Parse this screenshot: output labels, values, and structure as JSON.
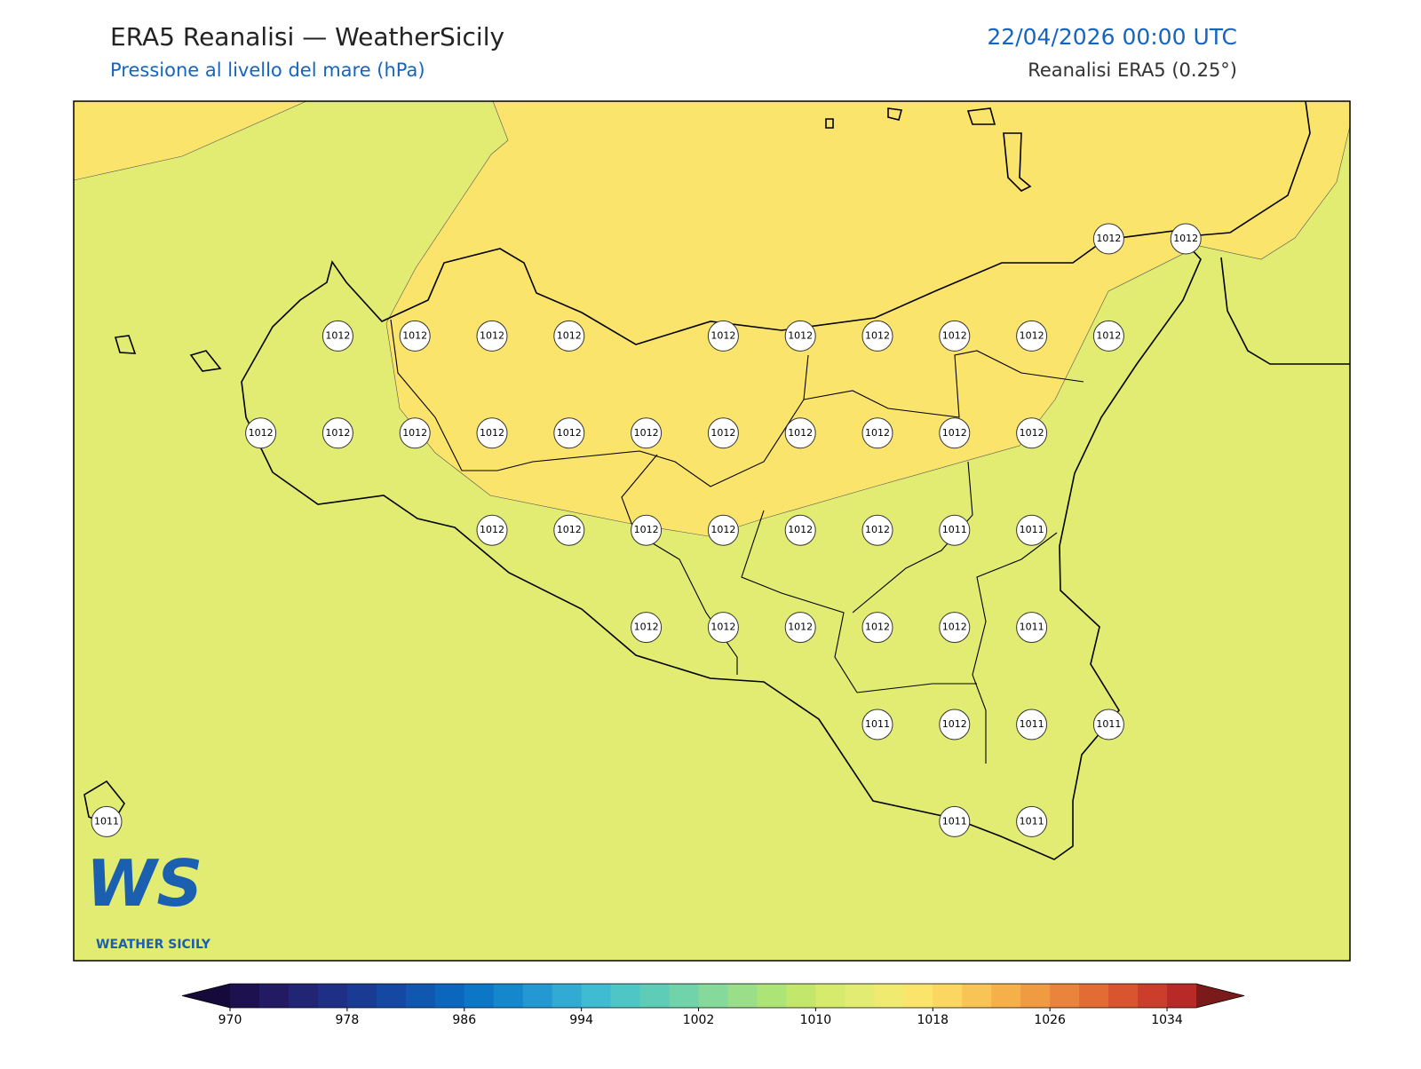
{
  "header": {
    "title": "ERA5 Reanalisi — WeatherSicily",
    "subtitle": "Pressione al livello del mare (hPa)",
    "datetime": "22/04/2026 00:00 UTC",
    "source": "Reanalisi ERA5 (0.25°)"
  },
  "pressure_grid": {
    "rows": [
      [
        null,
        null,
        null,
        null,
        null,
        null,
        null,
        null,
        null,
        null,
        null,
        null,
        null,
        1012,
        1012
      ],
      [
        null,
        null,
        null,
        1012,
        1012,
        1012,
        1012,
        null,
        1012,
        1012,
        1012,
        1012,
        1012,
        1012,
        null
      ],
      [
        null,
        null,
        1012,
        1012,
        1012,
        1012,
        1012,
        1012,
        1012,
        1012,
        1012,
        1012,
        1012,
        null,
        null
      ],
      [
        null,
        null,
        null,
        null,
        null,
        1012,
        1012,
        1012,
        1012,
        1012,
        1012,
        1011,
        1011,
        null,
        null
      ],
      [
        null,
        null,
        null,
        null,
        null,
        null,
        null,
        1012,
        1012,
        1012,
        1012,
        1012,
        1011,
        null,
        null
      ],
      [
        null,
        null,
        null,
        null,
        null,
        null,
        null,
        null,
        null,
        null,
        1011,
        1012,
        1011,
        1011,
        null
      ],
      [
        1011,
        null,
        null,
        null,
        null,
        null,
        null,
        null,
        null,
        null,
        null,
        1011,
        1011,
        null,
        null
      ]
    ]
  },
  "colorbar": {
    "lim": [
      970,
      1036
    ],
    "ticks": [
      970,
      978,
      986,
      994,
      1002,
      1010,
      1018,
      1026,
      1034
    ],
    "colors": [
      "#1e1150",
      "#221a63",
      "#222474",
      "#1f2f85",
      "#1a3b93",
      "#1548a2",
      "#1057b0",
      "#0b67bd",
      "#0c77c6",
      "#1587cd",
      "#2398d2",
      "#31abd4",
      "#3fbcd2",
      "#4ec6c6",
      "#5ecdb8",
      "#70d3aa",
      "#85d99b",
      "#9ade89",
      "#ade476",
      "#c3e76a",
      "#d6ea6c",
      "#e2ec72",
      "#f0ea70",
      "#fbe46c",
      "#fbd660",
      "#f8c455",
      "#f5b04a",
      "#f09a42",
      "#ea833b",
      "#e26c34",
      "#d8552f",
      "#ca3e2b",
      "#b82a28"
    ],
    "under": "#150a3a",
    "over": "#7a1a1a"
  },
  "logo": {
    "mark": "WS",
    "caption": "WEATHER SICILY"
  }
}
